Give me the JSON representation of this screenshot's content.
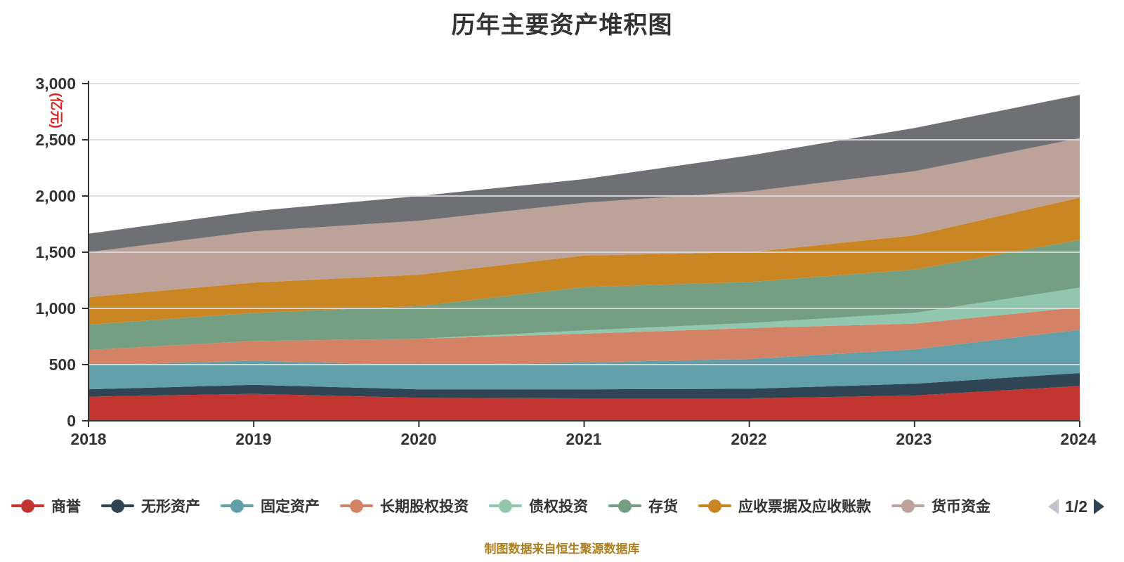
{
  "title": "历年主要资产堆积图",
  "y_axis_unit": "(亿元)",
  "footer_note": "制图数据来自恒生聚源数据库",
  "colors": {
    "axis": "#333333",
    "axis_unit": "#e01f1f",
    "gridline": "#dcdcdc",
    "title_text": "#333333",
    "footer_text": "#ad7d1e"
  },
  "legend": {
    "items": [
      {
        "label": "商誉",
        "color": "#c23531"
      },
      {
        "label": "无形资产",
        "color": "#2f4554"
      },
      {
        "label": "固定资产",
        "color": "#61a0a8"
      },
      {
        "label": "长期股权投资",
        "color": "#d48265"
      },
      {
        "label": "债权投资",
        "color": "#91c7ae"
      },
      {
        "label": "存货",
        "color": "#749f83"
      },
      {
        "label": "应收票据及应收账款",
        "color": "#ca8622"
      },
      {
        "label": "货币资金",
        "color": "#bda29a"
      }
    ],
    "pager": {
      "label": "1/2",
      "prev_color": "#c0c4cc",
      "next_color": "#2f4554"
    }
  },
  "chart_data": {
    "type": "area",
    "stacked": true,
    "title": "历年主要资产堆积图",
    "xlabel": "",
    "ylabel": "(亿元)",
    "ylim": [
      0,
      3000
    ],
    "grid": true,
    "legend_position": "bottom",
    "x": [
      "2018",
      "2019",
      "2020",
      "2021",
      "2022",
      "2023",
      "2024"
    ],
    "y_ticks": [
      "0",
      "500",
      "1,000",
      "1,500",
      "2,000",
      "2,500",
      "3,000"
    ],
    "series": [
      {
        "name": "商誉",
        "color": "#c23531",
        "values": [
          215,
          240,
          205,
          200,
          200,
          225,
          310
        ]
      },
      {
        "name": "无形资产",
        "color": "#2f4554",
        "values": [
          65,
          80,
          75,
          80,
          85,
          105,
          115
        ]
      },
      {
        "name": "固定资产",
        "color": "#61a0a8",
        "values": [
          215,
          215,
          215,
          240,
          265,
          305,
          385
        ]
      },
      {
        "name": "长期股权投资",
        "color": "#d48265",
        "values": [
          135,
          175,
          235,
          255,
          275,
          230,
          200
        ]
      },
      {
        "name": "债权投资",
        "color": "#91c7ae",
        "values": [
          0,
          0,
          0,
          30,
          45,
          95,
          175
        ]
      },
      {
        "name": "存货",
        "color": "#749f83",
        "values": [
          225,
          250,
          290,
          385,
          365,
          385,
          425
        ]
      },
      {
        "name": "应收票据及应收账款",
        "color": "#ca8622",
        "values": [
          245,
          270,
          280,
          280,
          265,
          305,
          375
        ]
      },
      {
        "name": "货币资金",
        "color": "#bda29a",
        "values": [
          400,
          455,
          480,
          470,
          540,
          570,
          530
        ]
      },
      {
        "name": "",
        "color": "#6e7074",
        "values": [
          165,
          180,
          220,
          210,
          320,
          385,
          385
        ]
      }
    ]
  }
}
